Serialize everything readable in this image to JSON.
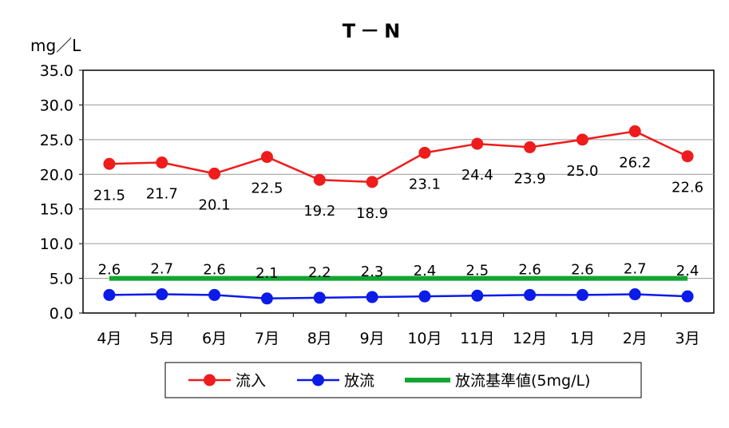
{
  "chart_data": {
    "type": "line",
    "title": "T－N",
    "ylabel": "mg／L",
    "xlabel": "",
    "ylim": [
      0,
      35
    ],
    "ytick_step": 5,
    "ytick_labels": [
      "0.0",
      "5.0",
      "10.0",
      "15.0",
      "20.0",
      "25.0",
      "30.0",
      "35.0"
    ],
    "grid": true,
    "legend_position": "bottom",
    "categories": [
      "4月",
      "5月",
      "6月",
      "7月",
      "8月",
      "9月",
      "10月",
      "11月",
      "12月",
      "1月",
      "2月",
      "3月"
    ],
    "series": [
      {
        "name": "流入",
        "color": "#ee1c1c",
        "marker": "circle",
        "values": [
          21.5,
          21.7,
          20.1,
          22.5,
          19.2,
          18.9,
          23.1,
          24.4,
          23.9,
          25.0,
          26.2,
          22.6
        ],
        "labels": [
          "21.5",
          "21.7",
          "20.1",
          "22.5",
          "19.2",
          "18.9",
          "23.1",
          "24.4",
          "23.9",
          "25.0",
          "26.2",
          "22.6"
        ],
        "label_position": "below"
      },
      {
        "name": "放流",
        "color": "#0b1be8",
        "marker": "circle",
        "values": [
          2.6,
          2.7,
          2.6,
          2.1,
          2.2,
          2.3,
          2.4,
          2.5,
          2.6,
          2.6,
          2.7,
          2.4
        ],
        "labels": [
          "2.6",
          "2.7",
          "2.6",
          "2.1",
          "2.2",
          "2.3",
          "2.4",
          "2.5",
          "2.6",
          "2.6",
          "2.7",
          "2.4"
        ],
        "label_position": "above"
      },
      {
        "name": "放流基準値(5mg/L)",
        "color": "#12a531",
        "marker": "none",
        "values": [
          5,
          5,
          5,
          5,
          5,
          5,
          5,
          5,
          5,
          5,
          5,
          5
        ]
      }
    ]
  }
}
